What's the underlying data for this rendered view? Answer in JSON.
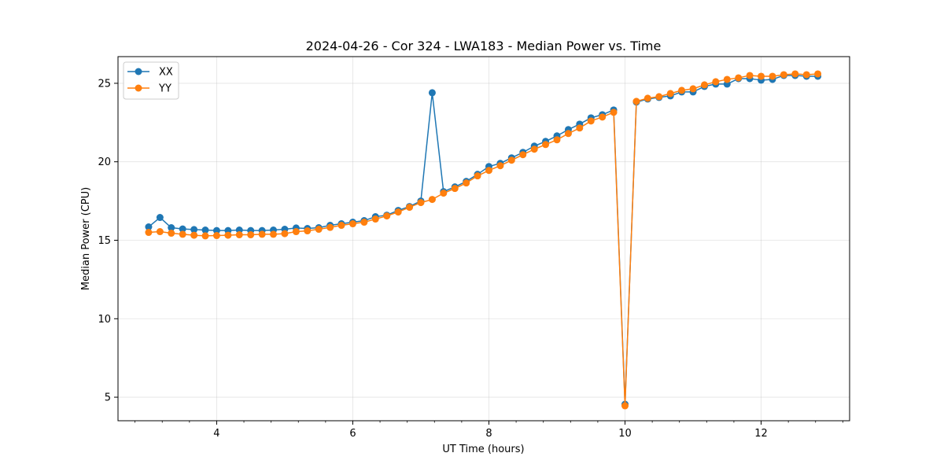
{
  "chart_data": {
    "type": "line",
    "title": "2024-04-26 - Cor 324 - LWA183 - Median Power vs. Time",
    "xlabel": "UT Time (hours)",
    "ylabel": "Median Power (CPU)",
    "xlim": [
      2.55,
      13.3
    ],
    "ylim": [
      3.5,
      26.7
    ],
    "xticks": [
      4,
      6,
      8,
      10,
      12
    ],
    "xtick_labels": [
      "4",
      "6",
      "8",
      "10",
      "12"
    ],
    "yticks": [
      5,
      10,
      15,
      20,
      25
    ],
    "ytick_labels": [
      "5",
      "10",
      "15",
      "20",
      "25"
    ],
    "grid": true,
    "legend_position": "top-left",
    "x": [
      3.0,
      3.167,
      3.333,
      3.5,
      3.667,
      3.833,
      4.0,
      4.167,
      4.333,
      4.5,
      4.667,
      4.833,
      5.0,
      5.167,
      5.333,
      5.5,
      5.667,
      5.833,
      6.0,
      6.167,
      6.333,
      6.5,
      6.667,
      6.833,
      7.0,
      7.167,
      7.333,
      7.5,
      7.667,
      7.833,
      8.0,
      8.167,
      8.333,
      8.5,
      8.667,
      8.833,
      9.0,
      9.167,
      9.333,
      9.5,
      9.667,
      9.833,
      10.0,
      10.167,
      10.333,
      10.5,
      10.667,
      10.833,
      11.0,
      11.167,
      11.333,
      11.5,
      11.667,
      11.833,
      12.0,
      12.167,
      12.333,
      12.5,
      12.667,
      12.833
    ],
    "series": [
      {
        "name": "XX",
        "color": "#1f77b4",
        "values": [
          15.85,
          16.45,
          15.8,
          15.72,
          15.68,
          15.65,
          15.62,
          15.62,
          15.65,
          15.62,
          15.62,
          15.65,
          15.7,
          15.78,
          15.75,
          15.8,
          15.95,
          16.05,
          16.15,
          16.25,
          16.5,
          16.6,
          16.9,
          17.15,
          17.5,
          24.4,
          18.1,
          18.4,
          18.75,
          19.2,
          19.7,
          19.9,
          20.25,
          20.6,
          21.0,
          21.3,
          21.65,
          22.05,
          22.4,
          22.8,
          23.0,
          23.3,
          4.55,
          23.8,
          24.0,
          24.1,
          24.2,
          24.45,
          24.45,
          24.8,
          24.95,
          24.95,
          25.3,
          25.3,
          25.2,
          25.25,
          25.5,
          25.5,
          25.45,
          25.45
        ]
      },
      {
        "name": "YY",
        "color": "#ff7f0e",
        "values": [
          15.5,
          15.55,
          15.45,
          15.38,
          15.32,
          15.28,
          15.3,
          15.32,
          15.35,
          15.35,
          15.38,
          15.38,
          15.42,
          15.55,
          15.6,
          15.7,
          15.82,
          15.95,
          16.05,
          16.15,
          16.35,
          16.55,
          16.8,
          17.1,
          17.4,
          17.6,
          18.0,
          18.3,
          18.65,
          19.1,
          19.45,
          19.75,
          20.1,
          20.45,
          20.8,
          21.1,
          21.4,
          21.8,
          22.15,
          22.6,
          22.85,
          23.15,
          4.45,
          23.85,
          24.05,
          24.15,
          24.35,
          24.55,
          24.65,
          24.9,
          25.1,
          25.25,
          25.35,
          25.5,
          25.45,
          25.45,
          25.55,
          25.6,
          25.55,
          25.6
        ]
      }
    ]
  }
}
